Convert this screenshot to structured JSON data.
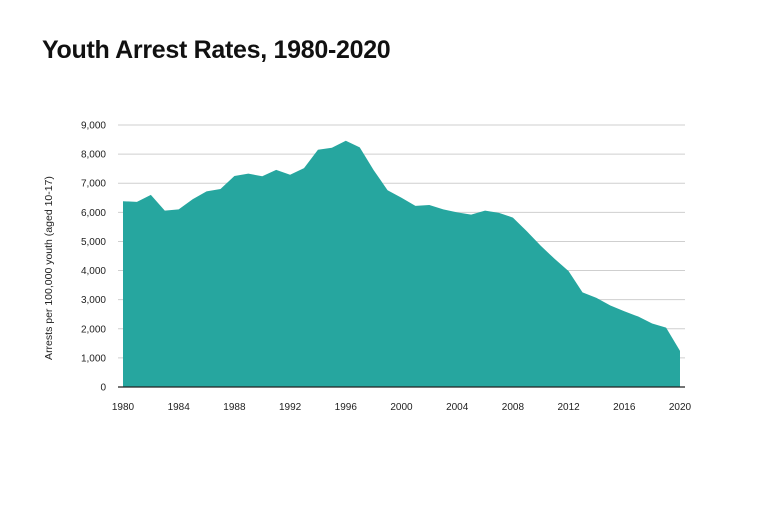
{
  "chart_data": {
    "type": "area",
    "title": "Youth Arrest Rates, 1980-2020",
    "xlabel": "",
    "ylabel": "Arrests per 100,000 youth (aged 10-17)",
    "xlim": [
      1980,
      2020
    ],
    "ylim": [
      0,
      9000
    ],
    "grid": true,
    "x_ticks": [
      "1980",
      "1984",
      "1988",
      "1992",
      "1996",
      "2000",
      "2004",
      "2008",
      "2012",
      "2016",
      "2020"
    ],
    "y_ticks": [
      "0",
      "1,000",
      "2,000",
      "3,000",
      "4,000",
      "5,000",
      "6,000",
      "7,000",
      "8,000",
      "9,000"
    ],
    "x": [
      1980,
      1981,
      1982,
      1983,
      1984,
      1985,
      1986,
      1987,
      1988,
      1989,
      1990,
      1991,
      1992,
      1993,
      1994,
      1995,
      1996,
      1997,
      1998,
      1999,
      2000,
      2001,
      2002,
      2003,
      2004,
      2005,
      2006,
      2007,
      2008,
      2009,
      2010,
      2011,
      2012,
      2013,
      2014,
      2015,
      2016,
      2017,
      2018,
      2019,
      2020
    ],
    "values": [
      6380,
      6360,
      6600,
      6060,
      6100,
      6450,
      6720,
      6800,
      7250,
      7330,
      7240,
      7460,
      7290,
      7520,
      8150,
      8220,
      8460,
      8230,
      7450,
      6760,
      6500,
      6220,
      6250,
      6100,
      6000,
      5920,
      6060,
      5980,
      5820,
      5350,
      4850,
      4400,
      3980,
      3250,
      3060,
      2800,
      2600,
      2420,
      2180,
      2040,
      1240
    ],
    "color": "#26a69f"
  }
}
